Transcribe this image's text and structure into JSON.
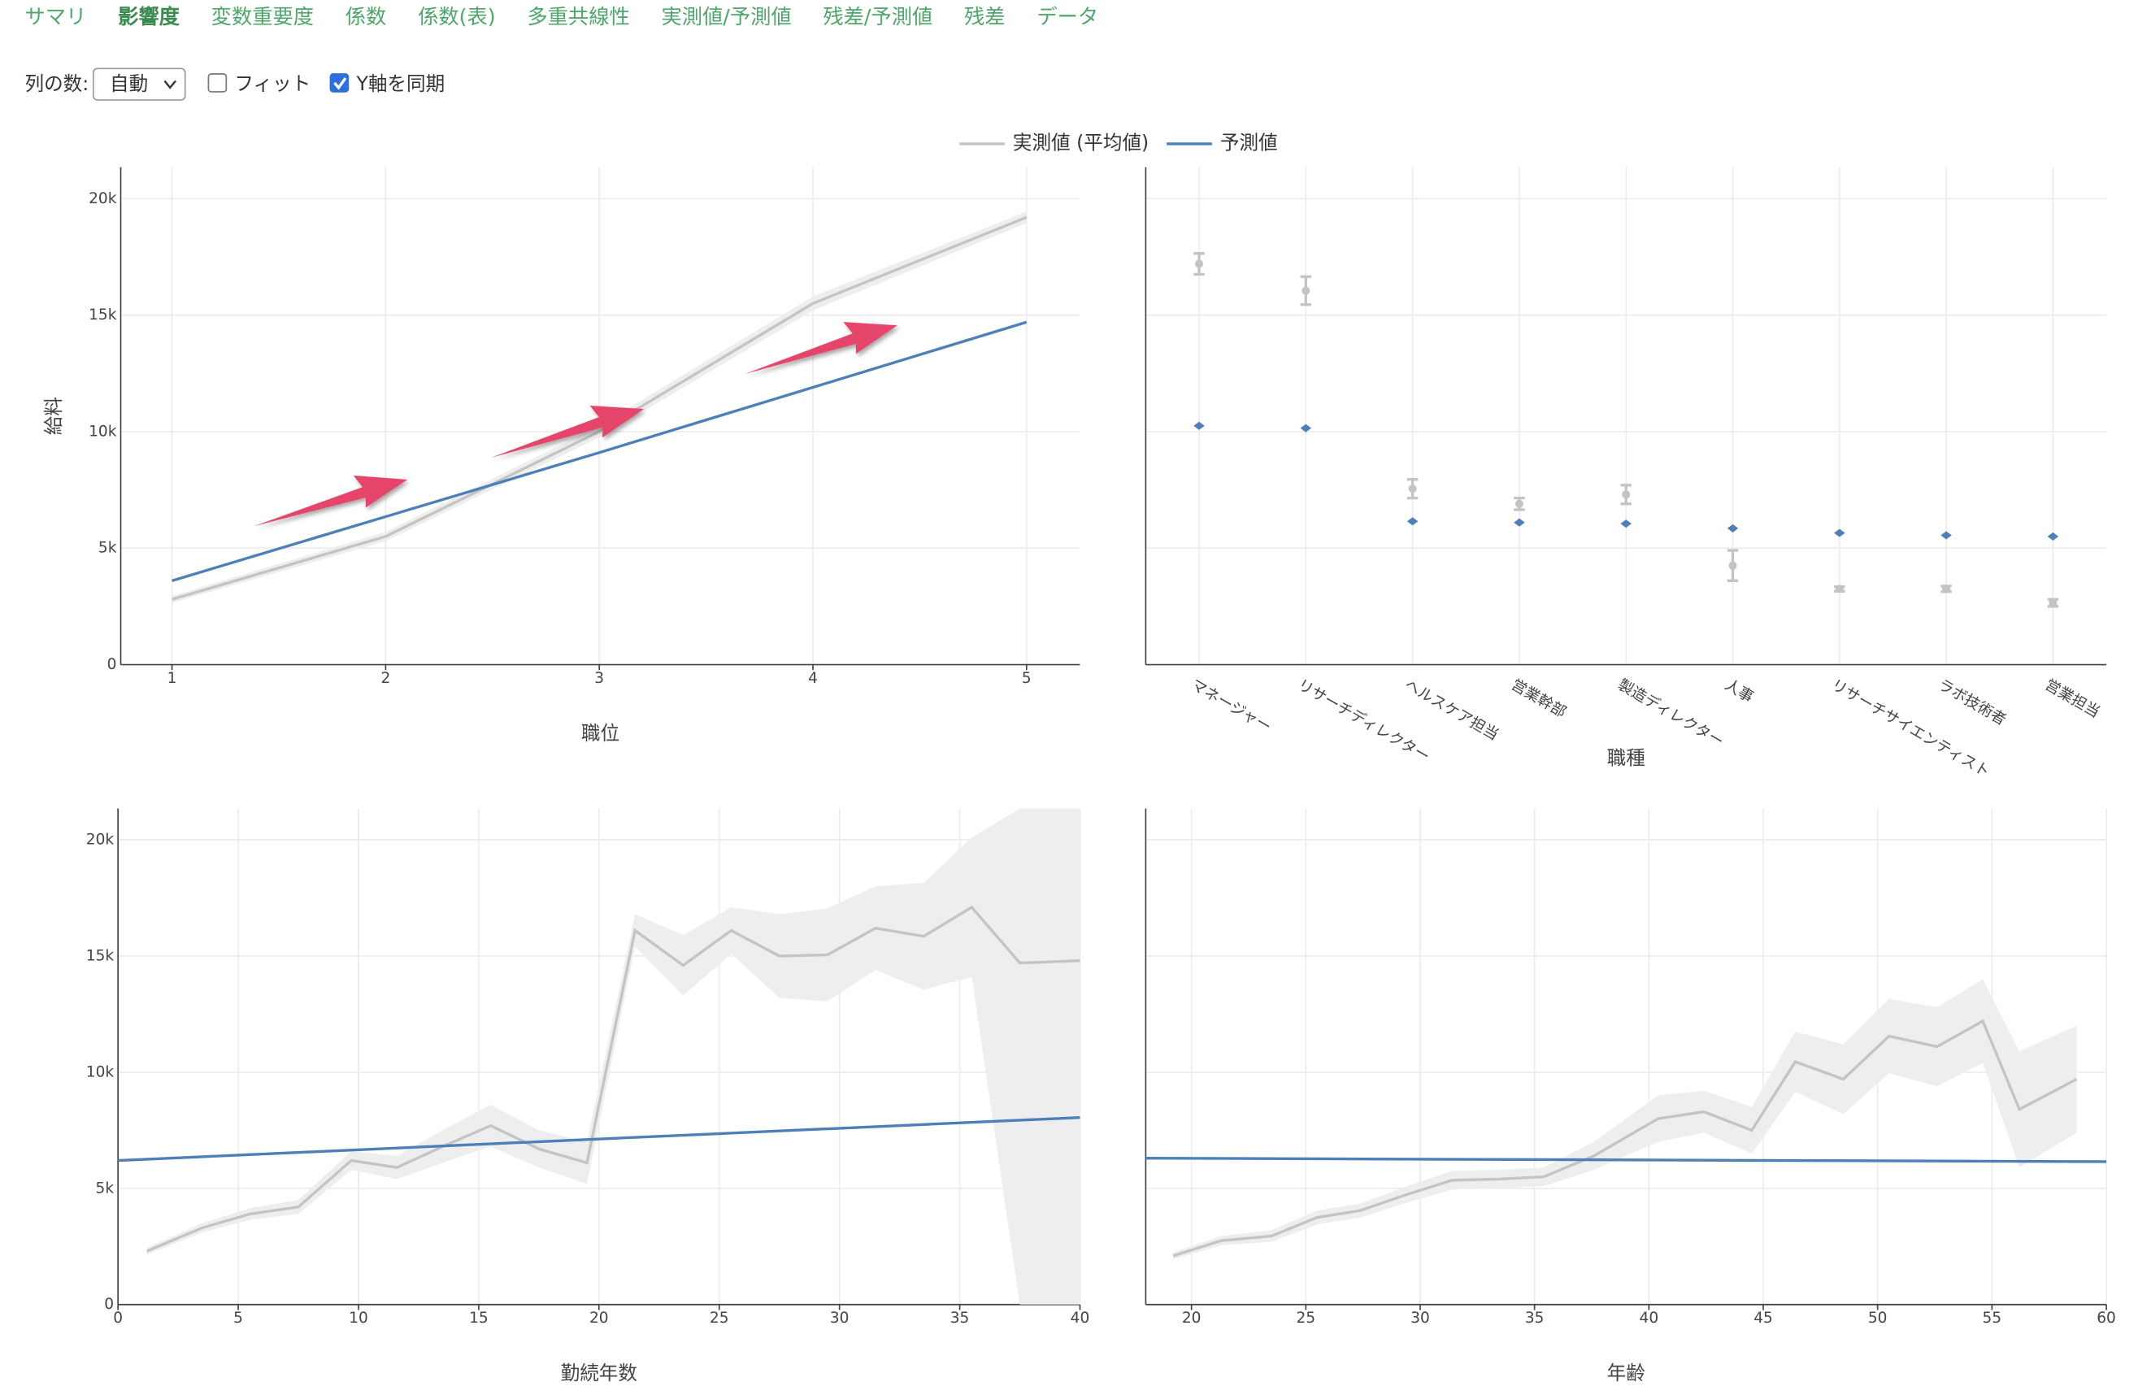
{
  "tabs": {
    "items": [
      "サマリ",
      "影響度",
      "変数重要度",
      "係数",
      "係数(表)",
      "多重共線性",
      "実測値/予測値",
      "残差/予測値",
      "残差",
      "データ"
    ],
    "active": 1
  },
  "controls": {
    "columns": {
      "label": "列の数:",
      "value": "自動"
    },
    "fit": {
      "label": "フィット",
      "checked": false
    },
    "sync_y": {
      "label": "Y軸を同期",
      "checked": true
    }
  },
  "chart_data": [
    {
      "type": "line",
      "xlabel": "職位",
      "ylabel": "給料",
      "xlim": [
        0.76,
        5.25
      ],
      "xticks": [
        1,
        2,
        3,
        4,
        5
      ],
      "ylim": [
        0,
        21350
      ],
      "yticks": [
        0,
        {
          "value": 5000,
          "label": "5k"
        },
        {
          "value": 10000,
          "label": "10k"
        },
        {
          "value": 15000,
          "label": "15k"
        },
        {
          "value": 20000,
          "label": "20k"
        }
      ],
      "grid": true,
      "series": [
        {
          "name": "実測値 (平均値)",
          "color": "#c4c4c4",
          "band_color": "#eeeeee",
          "x": [
            1,
            2,
            3,
            4,
            5
          ],
          "values": [
            2800,
            5500,
            10000,
            15500,
            19200
          ],
          "band_lower": [
            2650,
            5300,
            9750,
            15200,
            18950
          ],
          "band_upper": [
            2950,
            5700,
            10250,
            15800,
            19450
          ]
        },
        {
          "name": "予測値",
          "color": "#4e7fb8",
          "x": [
            1,
            2,
            3,
            4,
            5
          ],
          "values": [
            3600,
            6350,
            9100,
            11900,
            14700
          ]
        }
      ]
    },
    {
      "type": "errorbar",
      "xlabel": "職種",
      "categories": [
        "マネージャー",
        "リサーチディレクター",
        "ヘルスケア担当",
        "営業幹部",
        "製造ディレクター",
        "人事",
        "リサーチサイエンティスト",
        "ラボ技術者",
        "営業担当"
      ],
      "ylim": [
        0,
        21350
      ],
      "yticks": [
        0,
        5000,
        10000,
        15000,
        20000
      ],
      "grid": true,
      "series": [
        {
          "name": "実測値 (平均値)",
          "color": "#c4c4c4",
          "marker": "circle",
          "values": [
            17200,
            16050,
            7550,
            6900,
            7300,
            4250,
            3250,
            3250,
            2650
          ],
          "errors": [
            450,
            600,
            400,
            250,
            400,
            650,
            100,
            120,
            150
          ]
        },
        {
          "name": "予測値",
          "color": "#4e7fb8",
          "marker": "diamond",
          "values": [
            10250,
            10150,
            6150,
            6100,
            6050,
            5850,
            5650,
            5550,
            5500
          ]
        }
      ]
    },
    {
      "type": "line",
      "xlabel": "勤続年数",
      "xlim": [
        0,
        40
      ],
      "xticks": [
        0,
        5,
        10,
        15,
        20,
        25,
        30,
        35,
        40
      ],
      "ylim": [
        0,
        21350
      ],
      "yticks": [
        0,
        {
          "value": 5000,
          "label": "5k"
        },
        {
          "value": 10000,
          "label": "10k"
        },
        {
          "value": 15000,
          "label": "15k"
        },
        {
          "value": 20000,
          "label": "20k"
        }
      ],
      "grid": true,
      "series": [
        {
          "name": "実測値 (平均値)",
          "color": "#c4c4c4",
          "band_color": "#eeeeee",
          "x": [
            1.2,
            3.5,
            5.5,
            7.5,
            9.7,
            11.6,
            13.5,
            15.5,
            17.5,
            19.5,
            21.5,
            23.5,
            25.5,
            27.5,
            29.5,
            31.5,
            33.5,
            35.5,
            37.5,
            40
          ],
          "values": [
            2300,
            3300,
            3900,
            4200,
            6200,
            5900,
            6800,
            7700,
            6700,
            6100,
            16100,
            14600,
            16100,
            15000,
            15050,
            16200,
            15850,
            17100,
            14700,
            14800
          ],
          "band_lower": [
            2150,
            3100,
            3650,
            3900,
            5800,
            5400,
            6100,
            6800,
            5900,
            5200,
            15400,
            13300,
            15100,
            13200,
            13050,
            14400,
            13550,
            14100,
            0,
            0
          ],
          "band_upper": [
            2450,
            3500,
            4150,
            4500,
            6600,
            6400,
            7500,
            8600,
            7500,
            7000,
            16800,
            15900,
            17100,
            16800,
            17050,
            18000,
            18150,
            20100,
            21350,
            21350
          ]
        },
        {
          "name": "予測値",
          "color": "#4e7fb8",
          "x": [
            0,
            40
          ],
          "values": [
            6200,
            8050
          ]
        }
      ]
    },
    {
      "type": "line",
      "xlabel": "年齢",
      "xlim": [
        18,
        60
      ],
      "xticks": [
        20,
        25,
        30,
        35,
        40,
        45,
        50,
        55,
        60
      ],
      "ylim": [
        0,
        21350
      ],
      "yticks": [
        0,
        5000,
        10000,
        15000,
        20000
      ],
      "grid": true,
      "series": [
        {
          "name": "実測値 (平均値)",
          "color": "#c4c4c4",
          "band_color": "#eeeeee",
          "x": [
            19.2,
            21.3,
            23.5,
            25.5,
            27.4,
            29.3,
            31.4,
            33.4,
            35.4,
            37.6,
            40.4,
            42.4,
            44.5,
            46.4,
            48.5,
            50.5,
            52.6,
            54.6,
            56.2,
            58.7
          ],
          "values": [
            2100,
            2750,
            2950,
            3750,
            4050,
            4700,
            5350,
            5400,
            5500,
            6400,
            8000,
            8300,
            7500,
            10450,
            9700,
            11550,
            11100,
            12200,
            8400,
            9700
          ],
          "band_lower": [
            1950,
            2550,
            2700,
            3450,
            3750,
            4350,
            4950,
            5000,
            5100,
            5800,
            7000,
            7400,
            6500,
            9150,
            8200,
            9950,
            9400,
            10400,
            5900,
            7400
          ],
          "band_upper": [
            2250,
            2950,
            3200,
            4050,
            4350,
            5050,
            5750,
            5800,
            5900,
            7000,
            9000,
            9200,
            8500,
            11750,
            11200,
            13150,
            12800,
            14000,
            10900,
            12000
          ]
        },
        {
          "name": "予測値",
          "color": "#4e7fb8",
          "x": [
            18,
            60
          ],
          "values": [
            6300,
            6150
          ]
        }
      ]
    }
  ]
}
